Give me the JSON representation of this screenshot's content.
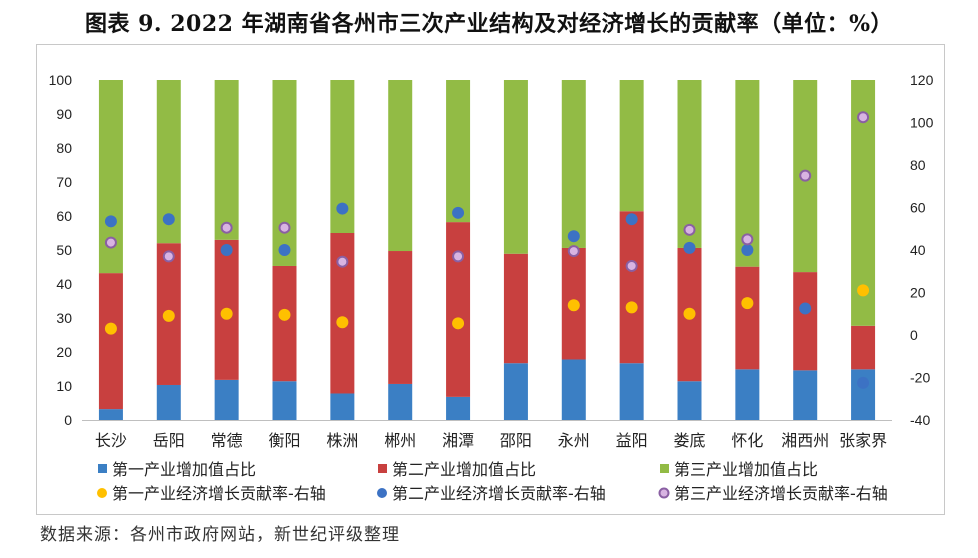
{
  "title": "图表 9. 2022 年湖南省各州市三次产业结构及对经济增长的贡献率（单位：%）",
  "source": "数据来源：各州市政府网站，新世纪评级整理",
  "chart_data": {
    "type": "bar",
    "stacked": true,
    "categories": [
      "长沙",
      "岳阳",
      "常德",
      "衡阳",
      "株洲",
      "郴州",
      "湘潭",
      "邵阳",
      "永州",
      "益阳",
      "娄底",
      "怀化",
      "湘西州",
      "张家界"
    ],
    "bar_series": [
      {
        "name": "第一产业增加值占比",
        "color": "#3b7fc4",
        "values": [
          3.2,
          10.3,
          11.8,
          11.4,
          7.8,
          10.6,
          6.8,
          16.7,
          17.8,
          16.7,
          11.4,
          14.9,
          14.6,
          14.9
        ]
      },
      {
        "name": "第二产业增加值占比",
        "color": "#c8403f",
        "values": [
          40.0,
          41.7,
          41.2,
          33.9,
          47.2,
          39.1,
          51.4,
          32.2,
          32.8,
          44.7,
          39.2,
          30.2,
          28.9,
          12.8
        ]
      },
      {
        "name": "第三产业增加值占比",
        "color": "#92bb45",
        "values": [
          56.8,
          48.0,
          47.0,
          54.7,
          45.0,
          50.3,
          41.8,
          51.1,
          49.4,
          38.6,
          49.4,
          54.9,
          56.5,
          72.3
        ]
      }
    ],
    "dot_series": [
      {
        "name": "第一产业经济增长贡献率-右轴",
        "color": "#ffc000",
        "style": "filled",
        "values": [
          3,
          9,
          10,
          9.5,
          6,
          null,
          5.5,
          null,
          14,
          13,
          10,
          15,
          null,
          21
        ]
      },
      {
        "name": "第二产业经济增长贡献率-右轴",
        "color": "#3c72c4",
        "style": "filled",
        "values": [
          53.5,
          54.5,
          40,
          40,
          59.5,
          null,
          57.5,
          null,
          46.5,
          54.5,
          41,
          40,
          12.5,
          -22.5
        ]
      },
      {
        "name": "第三产业经济增长贡献率-右轴",
        "color": "#8a5fa3",
        "style": "ring",
        "values": [
          43.5,
          37,
          50.5,
          50.5,
          34.5,
          null,
          37,
          null,
          39.5,
          32.5,
          49.5,
          45,
          75,
          102.5
        ]
      }
    ],
    "y_left": {
      "min": 0,
      "max": 100,
      "ticks": [
        0,
        10,
        20,
        30,
        40,
        50,
        60,
        70,
        80,
        90,
        100
      ]
    },
    "y_right": {
      "min": -40,
      "max": 120,
      "ticks": [
        -40,
        -20,
        0,
        20,
        40,
        60,
        80,
        100,
        120
      ]
    },
    "legend_position": "bottom",
    "grid": false
  }
}
